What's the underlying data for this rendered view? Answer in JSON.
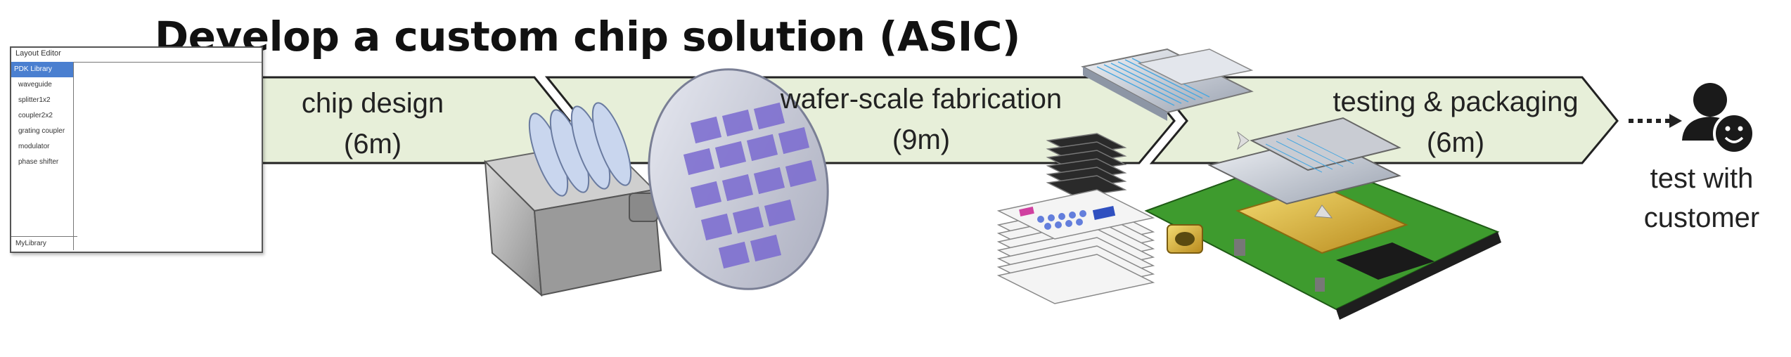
{
  "title": "Develop a custom chip solution (ASIC)",
  "editor": {
    "window_title": "Layout Editor",
    "library_header": "PDK Library",
    "items": [
      "waveguide",
      "splitter1x2",
      "coupler2x2",
      "grating coupler",
      "modulator",
      "phase shifter"
    ],
    "footer": "MyLibrary"
  },
  "steps": [
    {
      "name": "chip design",
      "duration": "(6m)"
    },
    {
      "name": "wafer-scale fabrication",
      "duration": "(9m)"
    },
    {
      "name": "testing & packaging",
      "duration": "(6m)"
    }
  ],
  "final_step": {
    "line1": "test with",
    "line2": "customer"
  },
  "colors": {
    "arrow_fill": "#e7efd9",
    "arrow_stroke": "#222222",
    "board_green": "#3e9b2e",
    "chip_gold": "#e0c040",
    "wafer_purple": "#7a6ad0"
  }
}
